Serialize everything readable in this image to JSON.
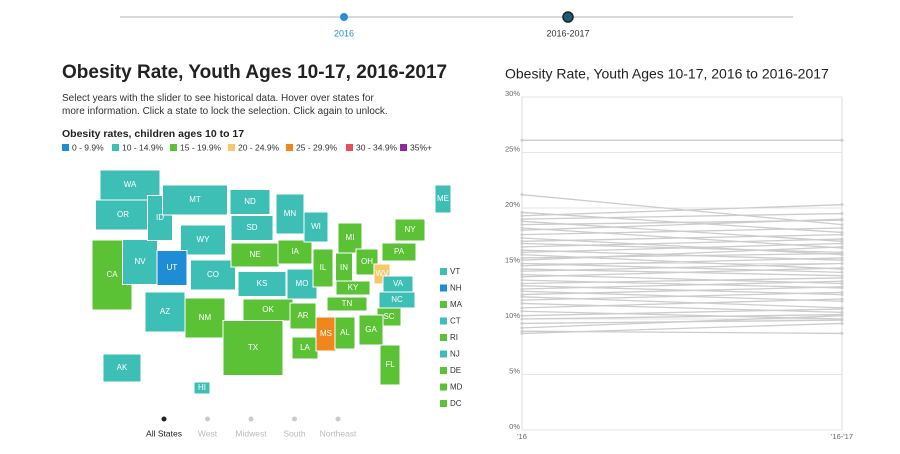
{
  "slider": {
    "labels": [
      "2016",
      "2016-2017"
    ]
  },
  "map": {
    "title": "Obesity Rate, Youth Ages 10-17, 2016-2017",
    "description": "Select years with the slider to see historical data. Hover over states for more information. Click a state to lock the selection. Click again to unlock.",
    "legend_title": "Obesity rates, children ages 10 to 17",
    "legend": [
      {
        "label": "0 - 9.9%",
        "color": "#1f8dd6"
      },
      {
        "label": "10 - 14.9%",
        "color": "#3dbfb5"
      },
      {
        "label": "15 - 19.9%",
        "color": "#5bc236"
      },
      {
        "label": "20 - 24.9%",
        "color": "#f5c96a"
      },
      {
        "label": "25 - 29.9%",
        "color": "#f0871c"
      },
      {
        "label": "30 - 34.9%",
        "color": "#e8505b"
      },
      {
        "label": "35%+",
        "color": "#8e2a9b"
      }
    ],
    "states": [
      {
        "label": "WA",
        "color": "#3dbfb5"
      },
      {
        "label": "OR",
        "color": "#3dbfb5"
      },
      {
        "label": "CA",
        "color": "#5bc236"
      },
      {
        "label": "NV",
        "color": "#3dbfb5"
      },
      {
        "label": "ID",
        "color": "#3dbfb5"
      },
      {
        "label": "MT",
        "color": "#3dbfb5"
      },
      {
        "label": "WY",
        "color": "#3dbfb5"
      },
      {
        "label": "UT",
        "color": "#1f8dd6"
      },
      {
        "label": "AZ",
        "color": "#3dbfb5"
      },
      {
        "label": "CO",
        "color": "#3dbfb5"
      },
      {
        "label": "NM",
        "color": "#5bc236"
      },
      {
        "label": "ND",
        "color": "#3dbfb5"
      },
      {
        "label": "SD",
        "color": "#3dbfb5"
      },
      {
        "label": "NE",
        "color": "#5bc236"
      },
      {
        "label": "KS",
        "color": "#3dbfb5"
      },
      {
        "label": "OK",
        "color": "#5bc236"
      },
      {
        "label": "TX",
        "color": "#5bc236"
      },
      {
        "label": "MN",
        "color": "#3dbfb5"
      },
      {
        "label": "IA",
        "color": "#5bc236"
      },
      {
        "label": "MO",
        "color": "#3dbfb5"
      },
      {
        "label": "AR",
        "color": "#5bc236"
      },
      {
        "label": "LA",
        "color": "#5bc236"
      },
      {
        "label": "WI",
        "color": "#3dbfb5"
      },
      {
        "label": "IL",
        "color": "#5bc236"
      },
      {
        "label": "MS",
        "color": "#f0871c"
      },
      {
        "label": "MI",
        "color": "#5bc236"
      },
      {
        "label": "IN",
        "color": "#5bc236"
      },
      {
        "label": "KY",
        "color": "#5bc236"
      },
      {
        "label": "TN",
        "color": "#5bc236"
      },
      {
        "label": "AL",
        "color": "#5bc236"
      },
      {
        "label": "OH",
        "color": "#5bc236"
      },
      {
        "label": "WV",
        "color": "#f5c96a"
      },
      {
        "label": "VA",
        "color": "#3dbfb5"
      },
      {
        "label": "NC",
        "color": "#3dbfb5"
      },
      {
        "label": "SC",
        "color": "#5bc236"
      },
      {
        "label": "GA",
        "color": "#5bc236"
      },
      {
        "label": "FL",
        "color": "#5bc236"
      },
      {
        "label": "PA",
        "color": "#5bc236"
      },
      {
        "label": "NY",
        "color": "#5bc236"
      },
      {
        "label": "ME",
        "color": "#3dbfb5"
      },
      {
        "label": "AK",
        "color": "#3dbfb5"
      },
      {
        "label": "HI",
        "color": "#3dbfb5"
      }
    ],
    "small_states": [
      {
        "label": "VT",
        "color": "#3dbfb5"
      },
      {
        "label": "NH",
        "color": "#1f8dd6"
      },
      {
        "label": "MA",
        "color": "#5bc236"
      },
      {
        "label": "CT",
        "color": "#3dbfb5"
      },
      {
        "label": "RI",
        "color": "#5bc236"
      },
      {
        "label": "NJ",
        "color": "#3dbfb5"
      },
      {
        "label": "DE",
        "color": "#5bc236"
      },
      {
        "label": "MD",
        "color": "#5bc236"
      },
      {
        "label": "DC",
        "color": "#5bc236"
      }
    ],
    "regions": [
      "All States",
      "West",
      "Midwest",
      "South",
      "Northeast"
    ]
  },
  "chart_data": {
    "type": "line",
    "title": "Obesity Rate, Youth Ages 10-17, 2016 to 2016-2017",
    "categories": [
      "'16",
      "'16-'17"
    ],
    "color": "#cccccc",
    "ylim": [
      0,
      30
    ],
    "yticks": [
      {
        "value": 0,
        "label": "0%"
      },
      {
        "value": 5,
        "label": "5%"
      },
      {
        "value": 10,
        "label": "10%"
      },
      {
        "value": 15,
        "label": "15%"
      },
      {
        "value": 20,
        "label": "20%"
      },
      {
        "value": 25,
        "label": "25%"
      },
      {
        "value": 30,
        "label": "30%"
      }
    ],
    "grid": true,
    "series": [
      {
        "values": [
          26.1,
          26.1
        ]
      },
      {
        "values": [
          21.2,
          18.5
        ]
      },
      {
        "values": [
          19.6,
          17.8
        ]
      },
      {
        "values": [
          19.3,
          20.3
        ]
      },
      {
        "values": [
          19.0,
          19.5
        ]
      },
      {
        "values": [
          18.8,
          17.0
        ]
      },
      {
        "values": [
          18.5,
          18.9
        ]
      },
      {
        "values": [
          18.2,
          16.4
        ]
      },
      {
        "values": [
          18.0,
          19.0
        ]
      },
      {
        "values": [
          17.6,
          18.2
        ]
      },
      {
        "values": [
          17.3,
          15.8
        ]
      },
      {
        "values": [
          17.0,
          17.6
        ]
      },
      {
        "values": [
          16.8,
          16.0
        ]
      },
      {
        "values": [
          16.5,
          17.2
        ]
      },
      {
        "values": [
          16.2,
          15.3
        ]
      },
      {
        "values": [
          16.0,
          16.8
        ]
      },
      {
        "values": [
          15.8,
          14.5
        ]
      },
      {
        "values": [
          15.5,
          15.9
        ]
      },
      {
        "values": [
          15.3,
          16.5
        ]
      },
      {
        "values": [
          15.0,
          14.2
        ]
      },
      {
        "values": [
          14.8,
          15.5
        ]
      },
      {
        "values": [
          14.5,
          13.9
        ]
      },
      {
        "values": [
          14.3,
          15.0
        ]
      },
      {
        "values": [
          14.0,
          13.2
        ]
      },
      {
        "values": [
          13.8,
          14.6
        ]
      },
      {
        "values": [
          13.5,
          12.8
        ]
      },
      {
        "values": [
          13.2,
          13.7
        ]
      },
      {
        "values": [
          13.0,
          12.2
        ]
      },
      {
        "values": [
          12.7,
          13.4
        ]
      },
      {
        "values": [
          12.5,
          11.6
        ]
      },
      {
        "values": [
          12.2,
          12.9
        ]
      },
      {
        "values": [
          12.0,
          11.0
        ]
      },
      {
        "values": [
          11.7,
          12.4
        ]
      },
      {
        "values": [
          11.4,
          10.6
        ]
      },
      {
        "values": [
          11.0,
          11.8
        ]
      },
      {
        "values": [
          10.7,
          10.0
        ]
      },
      {
        "values": [
          10.3,
          10.9
        ]
      },
      {
        "values": [
          10.0,
          10.4
        ]
      },
      {
        "values": [
          9.6,
          9.9
        ]
      },
      {
        "values": [
          9.2,
          10.3
        ]
      },
      {
        "values": [
          8.9,
          8.7
        ]
      },
      {
        "values": [
          8.7,
          9.6
        ]
      }
    ]
  }
}
